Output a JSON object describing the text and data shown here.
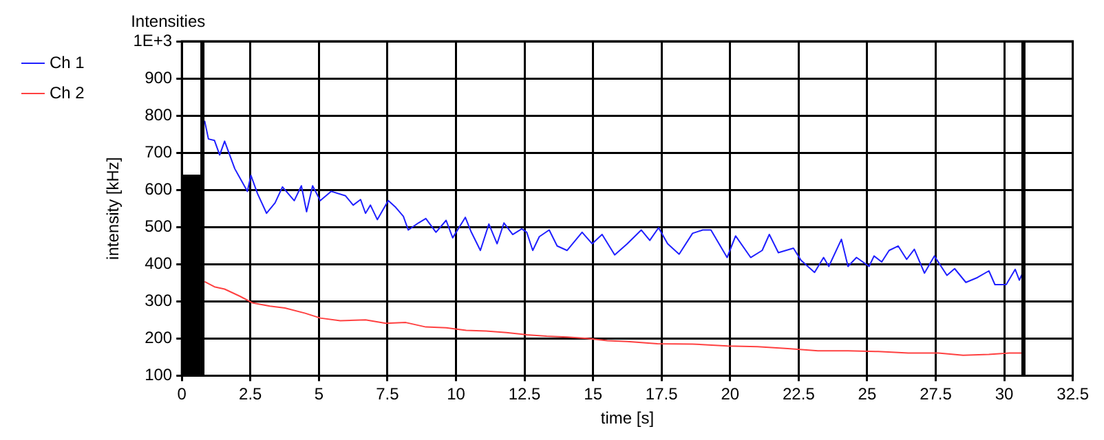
{
  "chart_data": {
    "type": "line",
    "title": "Intensities",
    "xlabel": "time [s]",
    "ylabel": "intensity [kHz]",
    "xlim": [
      0,
      32.5
    ],
    "xticks": [
      0,
      2.5,
      5,
      7.5,
      10,
      12.5,
      15,
      17.5,
      20,
      22.5,
      25,
      27.5,
      30,
      32.5
    ],
    "ylim": [
      100,
      1000
    ],
    "yticks": [
      100,
      200,
      300,
      400,
      500,
      600,
      700,
      800,
      900,
      {
        "value": 1000,
        "label": "1E+3"
      }
    ],
    "grid": true,
    "legend": "top left",
    "marker": "none",
    "line_style": "solid",
    "ref_lines": [
      {
        "axis": "x",
        "value": 0.75,
        "color": "#000000"
      },
      {
        "axis": "x",
        "value": 30.7,
        "color": "#000000"
      }
    ],
    "series": [
      {
        "type": "bar",
        "color": "#000000",
        "x": [
          0.35
        ],
        "values": [
          640
        ]
      },
      {
        "name": "Ch 1",
        "color": "#1f1fff",
        "x": [
          0.83,
          0.97,
          1.19,
          1.38,
          1.56,
          1.93,
          2.39,
          2.52,
          2.76,
          3.09,
          3.4,
          3.67,
          4.1,
          4.36,
          4.55,
          4.77,
          5.05,
          5.45,
          5.97,
          6.25,
          6.52,
          6.7,
          6.88,
          7.13,
          7.53,
          7.8,
          8.08,
          8.26,
          8.63,
          8.9,
          9.27,
          9.64,
          9.88,
          10.34,
          10.56,
          10.89,
          11.2,
          11.5,
          11.75,
          12.07,
          12.4,
          12.58,
          12.8,
          13.04,
          13.4,
          13.69,
          14.05,
          14.6,
          14.97,
          15.33,
          15.79,
          16.25,
          16.76,
          17.07,
          17.39,
          17.72,
          18.14,
          18.63,
          19.0,
          19.3,
          19.89,
          20.2,
          20.75,
          21.17,
          21.43,
          21.76,
          22.31,
          22.59,
          23.08,
          23.41,
          23.6,
          24.06,
          24.3,
          24.61,
          25.07,
          25.25,
          25.53,
          25.8,
          26.13,
          26.44,
          26.72,
          27.09,
          27.45,
          27.91,
          28.19,
          28.6,
          29.02,
          29.44,
          29.66,
          30.07,
          30.4,
          30.55,
          30.67
        ],
        "values": [
          786,
          737,
          733,
          694,
          731,
          657,
          596,
          639,
          590,
          537,
          565,
          608,
          571,
          611,
          541,
          611,
          571,
          596,
          584,
          559,
          574,
          537,
          559,
          520,
          571,
          553,
          529,
          492,
          511,
          523,
          486,
          518,
          471,
          526,
          486,
          437,
          508,
          455,
          511,
          480,
          495,
          486,
          437,
          474,
          492,
          449,
          437,
          486,
          455,
          480,
          425,
          455,
          492,
          464,
          498,
          455,
          427,
          483,
          492,
          492,
          418,
          476,
          418,
          437,
          480,
          431,
          443,
          410,
          378,
          418,
          394,
          467,
          394,
          418,
          394,
          422,
          406,
          437,
          449,
          413,
          440,
          376,
          422,
          370,
          388,
          351,
          364,
          382,
          345,
          345,
          386,
          357,
          376
        ]
      },
      {
        "name": "Ch 2",
        "color": "#ff4040",
        "x": [
          0.83,
          1.19,
          1.56,
          2.11,
          2.57,
          3.21,
          3.76,
          4.5,
          5.05,
          5.78,
          6.7,
          7.44,
          8.17,
          8.9,
          9.64,
          10.37,
          11.1,
          11.84,
          12.58,
          13.31,
          14.05,
          14.78,
          15.52,
          16.25,
          17.35,
          18.63,
          19.9,
          21.0,
          22.1,
          23.2,
          24.3,
          25.4,
          26.5,
          27.6,
          28.5,
          29.44,
          30.18,
          30.67
        ],
        "values": [
          353,
          339,
          333,
          314,
          296,
          287,
          282,
          268,
          255,
          248,
          250,
          241,
          243,
          231,
          229,
          222,
          220,
          216,
          210,
          206,
          204,
          200,
          194,
          192,
          186,
          185,
          180,
          178,
          173,
          167,
          167,
          165,
          161,
          161,
          155,
          157,
          161,
          161
        ]
      }
    ]
  }
}
